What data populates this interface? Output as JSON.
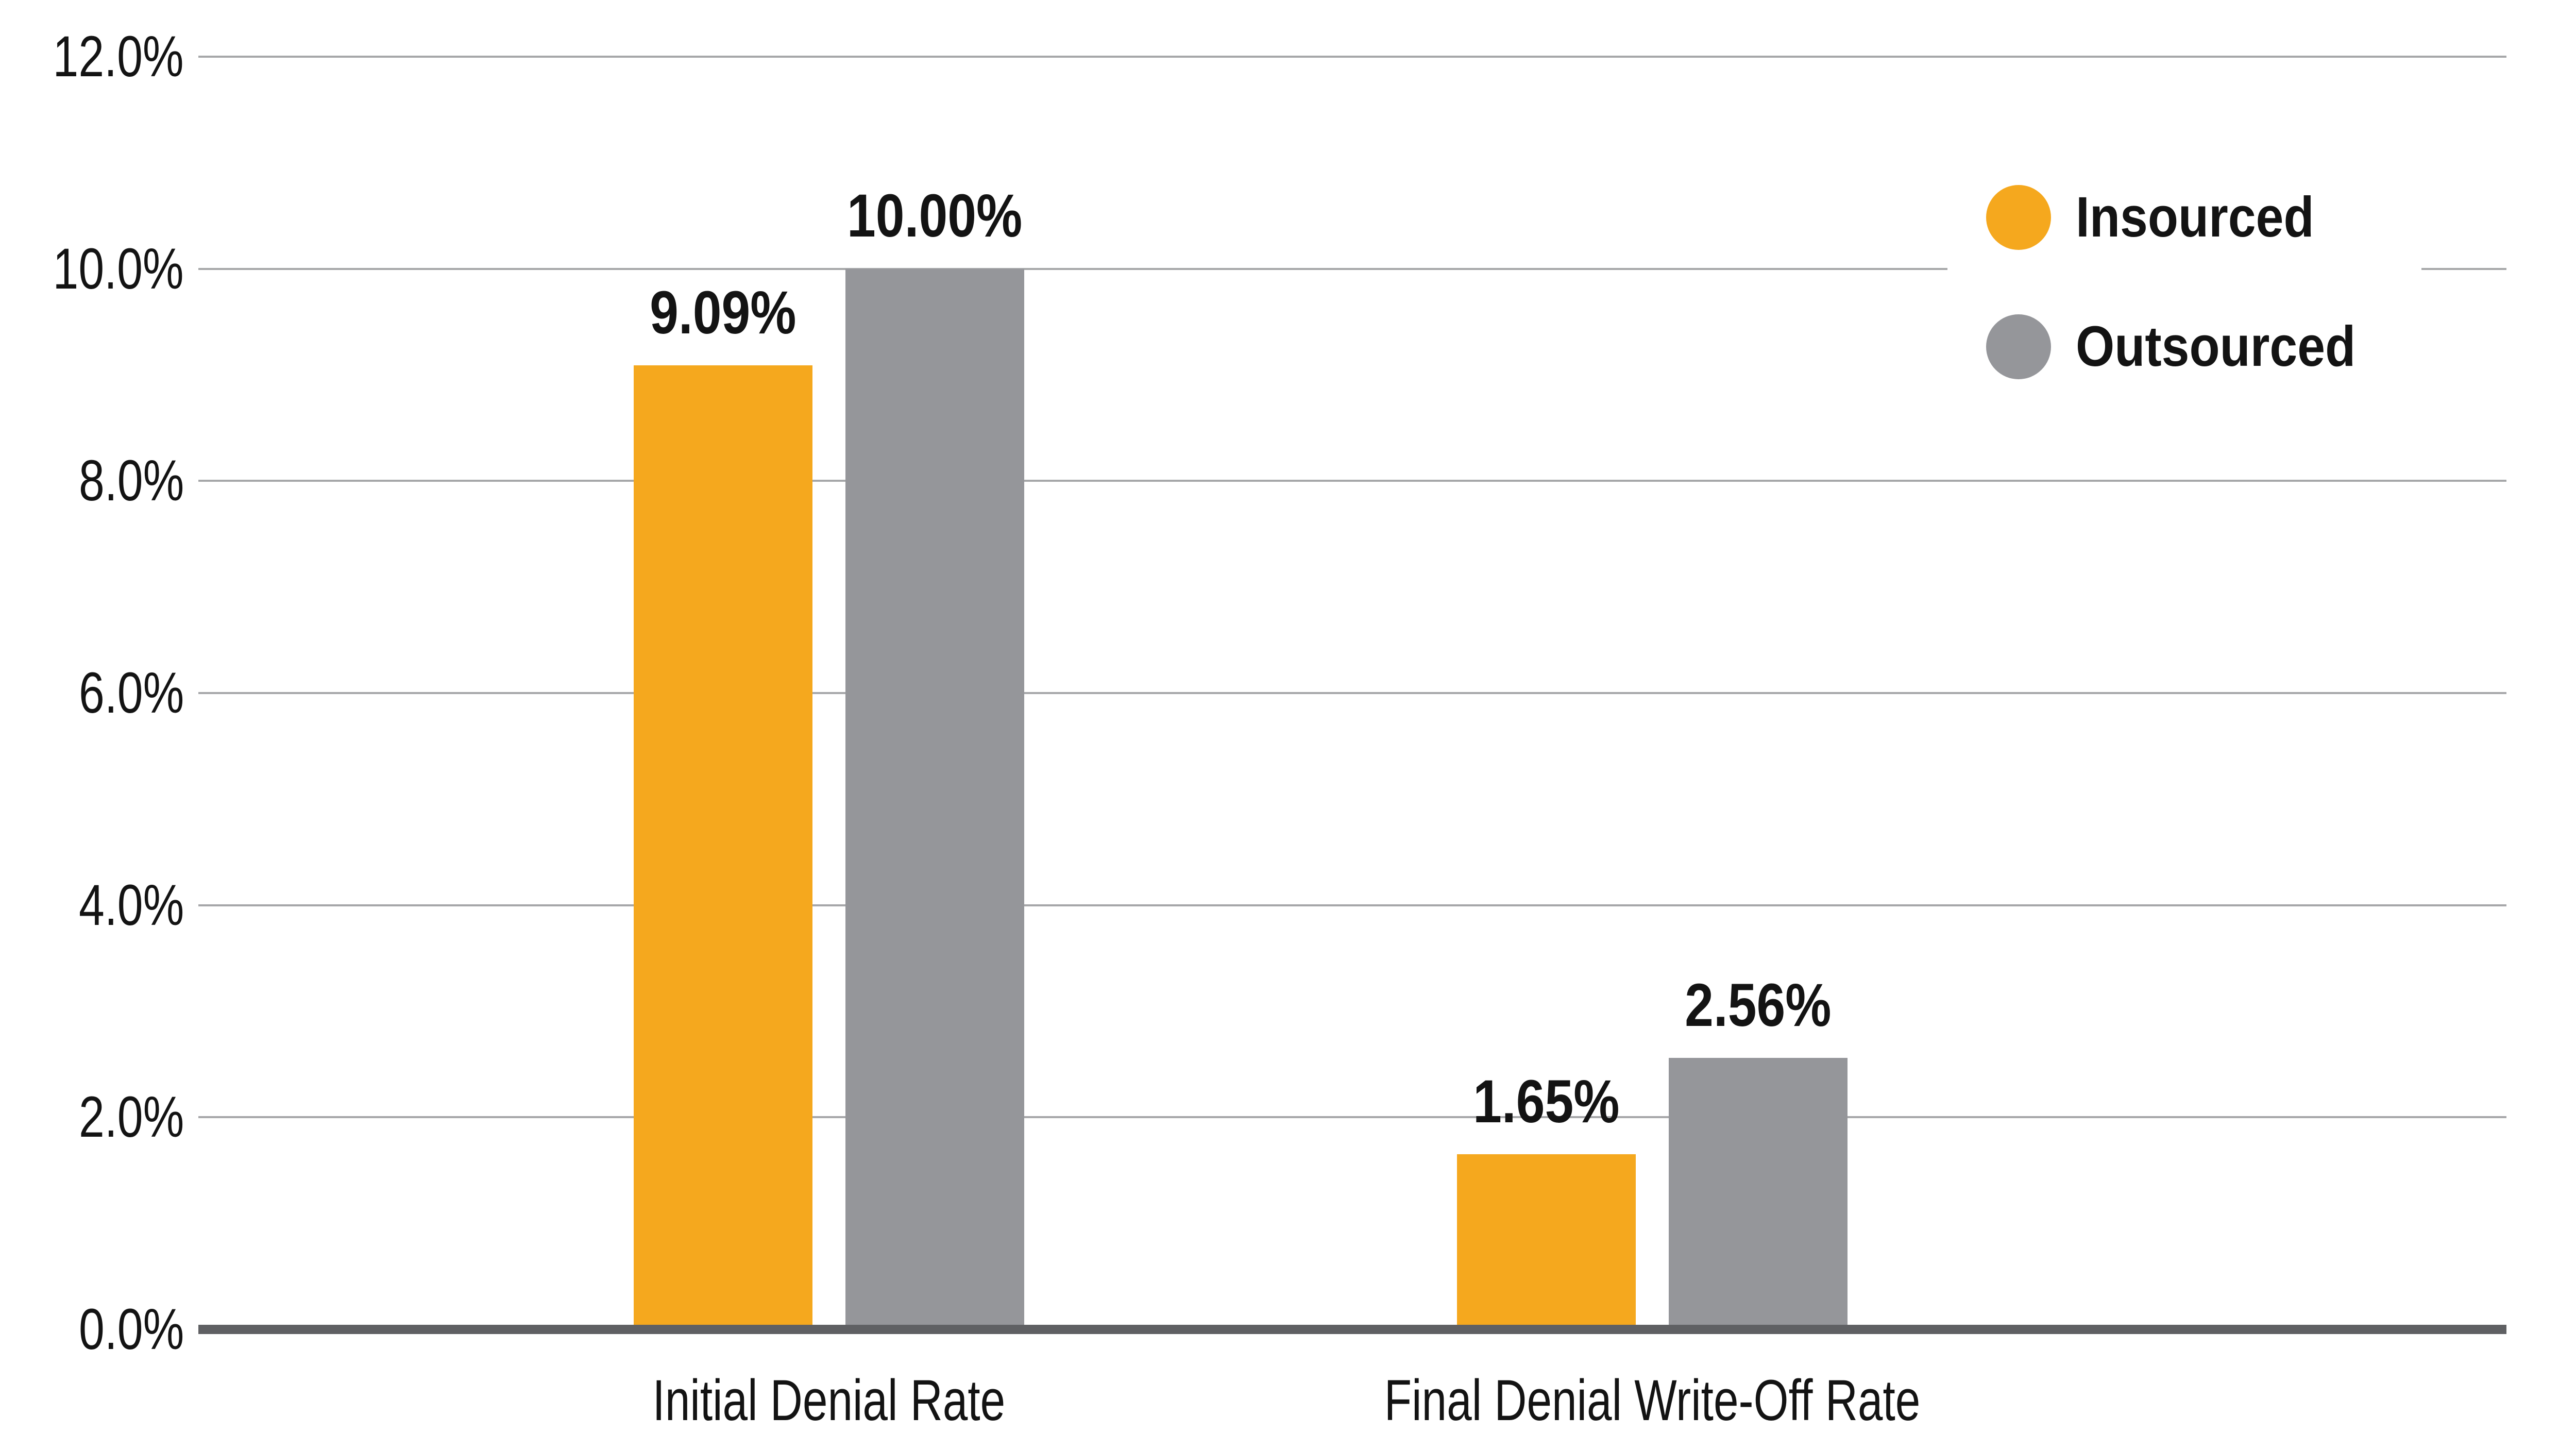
{
  "chart_data": {
    "type": "bar",
    "title": "",
    "categories": [
      "Initial Denial Rate",
      "Final Denial Write-Off Rate"
    ],
    "series": [
      {
        "name": "Insourced",
        "color": "#F5A81E",
        "values": [
          9.09,
          1.65
        ],
        "data_labels": [
          "9.09%",
          "1.65%"
        ]
      },
      {
        "name": "Outsourced",
        "color": "#95969A",
        "values": [
          10.0,
          2.56
        ],
        "data_labels": [
          "10.00%",
          "2.56%"
        ]
      }
    ],
    "xlabel": "",
    "ylabel": "",
    "ylim": [
      0,
      12
    ],
    "ytick_step": 2,
    "ytick_labels": [
      "0.0%",
      "2.0%",
      "4.0%",
      "6.0%",
      "8.0%",
      "10.0%",
      "12.0%"
    ],
    "grid": true,
    "legend_position": "upper right"
  },
  "colors": {
    "insourced": "#F5A81E",
    "outsourced": "#95969A",
    "axis_line": "#5F6063",
    "gridline": "#A6A7A9",
    "text": "#131313",
    "background": "#ffffff"
  }
}
